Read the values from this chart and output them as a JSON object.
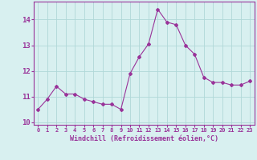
{
  "x": [
    0,
    1,
    2,
    3,
    4,
    5,
    6,
    7,
    8,
    9,
    10,
    11,
    12,
    13,
    14,
    15,
    16,
    17,
    18,
    19,
    20,
    21,
    22,
    23
  ],
  "y": [
    10.5,
    10.9,
    11.4,
    11.1,
    11.1,
    10.9,
    10.8,
    10.7,
    10.7,
    10.5,
    11.9,
    12.55,
    13.05,
    14.4,
    13.9,
    13.8,
    13.0,
    12.65,
    11.75,
    11.55,
    11.55,
    11.45,
    11.45,
    11.6
  ],
  "line_color": "#993399",
  "marker": "D",
  "marker_size": 2,
  "bg_color": "#d8f0f0",
  "grid_color": "#b0d8d8",
  "xlabel": "Windchill (Refroidissement éolien,°C)",
  "xlabel_color": "#993399",
  "tick_color": "#993399",
  "ylim": [
    9.9,
    14.7
  ],
  "xlim": [
    -0.5,
    23.5
  ],
  "yticks": [
    10,
    11,
    12,
    13,
    14
  ],
  "xticks": [
    0,
    1,
    2,
    3,
    4,
    5,
    6,
    7,
    8,
    9,
    10,
    11,
    12,
    13,
    14,
    15,
    16,
    17,
    18,
    19,
    20,
    21,
    22,
    23
  ]
}
